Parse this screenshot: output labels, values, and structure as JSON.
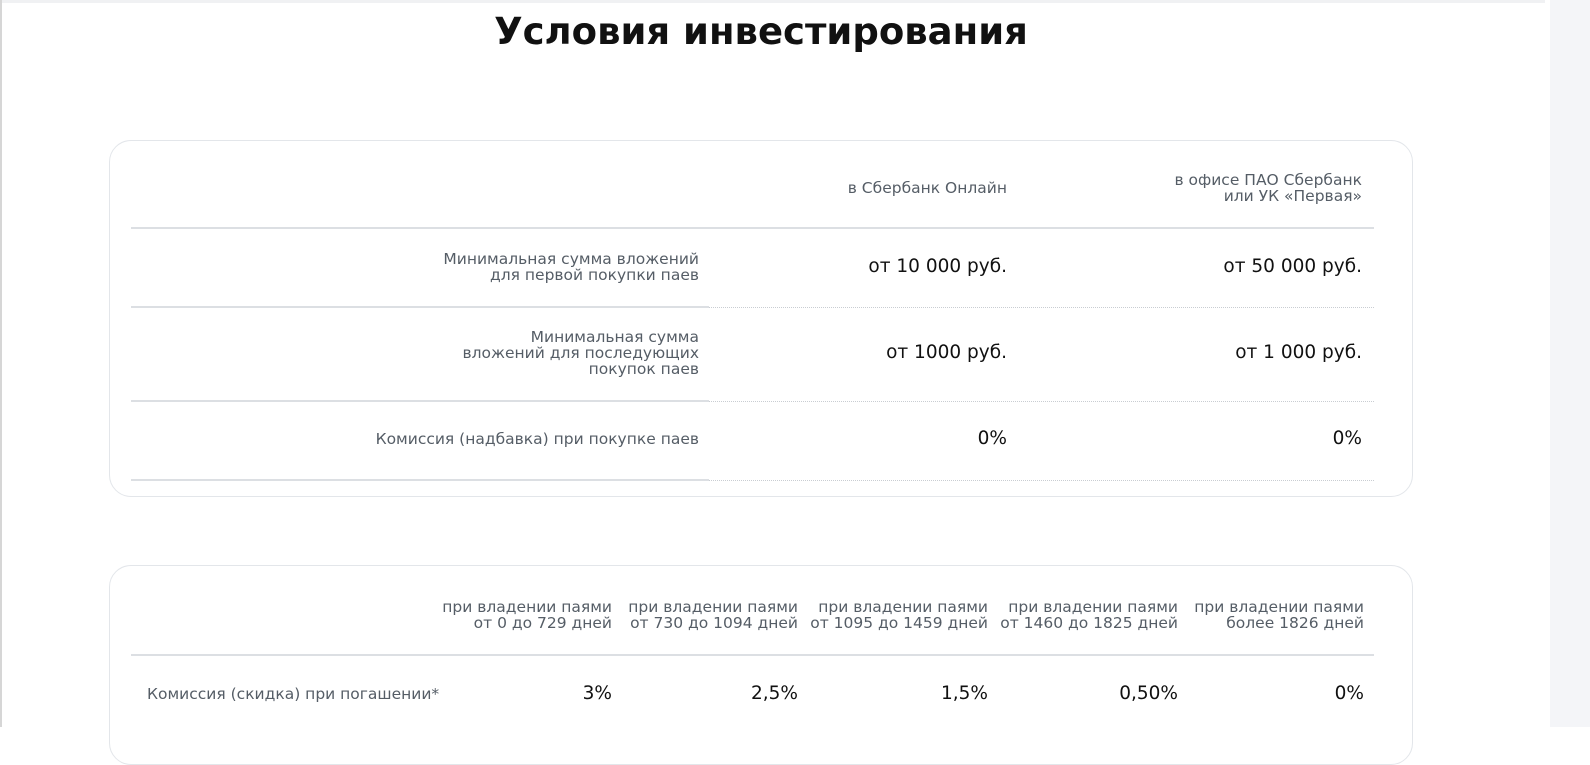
{
  "page": {
    "title": "Условия инвестирования"
  },
  "purchase_table": {
    "columns": [
      "в Сбербанк Онлайн",
      "в офисе ПАО Сбербанк\nили УК «Первая»"
    ],
    "rows": [
      {
        "label": "Минимальная сумма вложений\nдля первой покупки паев",
        "values": [
          "от 10 000 руб.",
          "от 50 000 руб."
        ]
      },
      {
        "label": "Минимальная сумма\nвложений для последующих\nпокупок паев",
        "values": [
          "от 1000 руб.",
          "от 1 000 руб."
        ]
      },
      {
        "label": "Комиссия (надбавка) при покупке паев",
        "values": [
          "0%",
          "0%"
        ]
      }
    ]
  },
  "redemption_table": {
    "columns": [
      "при владении паями\nот 0 до 729 дней",
      "при владении паями\nот 730 до 1094 дней",
      "при владении паями\nот 1095 до 1459 дней",
      "при владении паями\nот 1460 до 1825 дней",
      "при владении паями\nболее 1826 дней"
    ],
    "rows": [
      {
        "label": "Комиссия (скидка) при погашении*",
        "values": [
          "3%",
          "2,5%",
          "1,5%",
          "0,50%",
          "0%"
        ]
      }
    ]
  },
  "colors": {
    "text_primary": "#111111",
    "text_secondary": "#555d66",
    "card_border": "#e3e6ea",
    "divider": "#dcdfe3"
  }
}
